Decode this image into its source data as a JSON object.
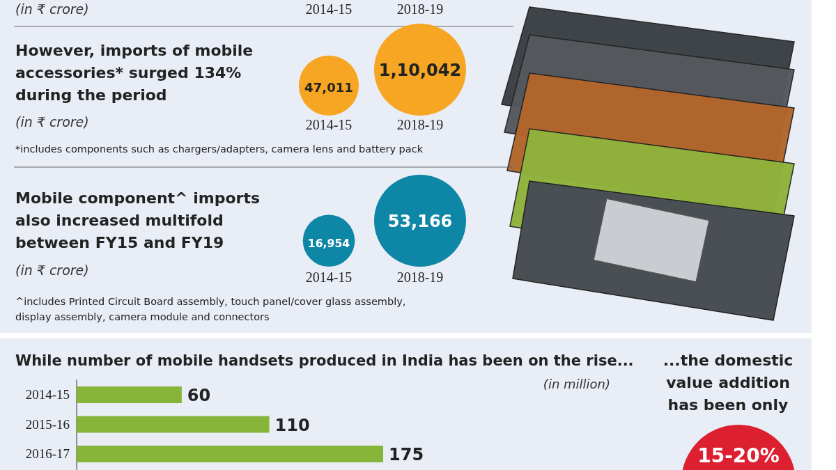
{
  "chart_data": [
    {
      "type": "other",
      "annotations": [
        "(in ₹ crore)"
      ],
      "categories": [
        "2014-15",
        "2018-19"
      ]
    },
    {
      "type": "other",
      "title": "However, imports of mobile accessories* surged 134% during the period",
      "subtitle": "(in ₹ crore)",
      "categories": [
        "2014-15",
        "2018-19"
      ],
      "values": [
        47011,
        110042
      ],
      "value_labels": [
        "47,011",
        "1,10,042"
      ],
      "colors": [
        "#f6a623",
        "#f6a623"
      ],
      "annotations": [
        "*includes components such as chargers/adapters, camera lens and battery pack"
      ]
    },
    {
      "type": "other",
      "title": "Mobile component^ imports also increased multifold between FY15 and FY19",
      "subtitle": "(in ₹ crore)",
      "categories": [
        "2014-15",
        "2018-19"
      ],
      "values": [
        16954,
        53166
      ],
      "value_labels": [
        "16,954",
        "53,166"
      ],
      "colors": [
        "#0e86a6",
        "#0e86a6"
      ],
      "annotations": [
        "^includes Printed Circuit Board assembly, touch panel/cover glass assembly, display assembly, camera module and connectors"
      ]
    },
    {
      "type": "bar",
      "orientation": "horizontal",
      "data_labels": true,
      "title": "While number of mobile handsets produced in India has been on the rise...",
      "annotations": [
        "(in million)"
      ],
      "categories": [
        "2014-15",
        "2015-16",
        "2016-17"
      ],
      "values": [
        60,
        110,
        175
      ],
      "color": "#86b53a"
    },
    {
      "type": "other",
      "title": "...the domestic value addition has been only",
      "annotations": [
        "15-20%"
      ],
      "colors": [
        "#dc2030"
      ]
    }
  ]
}
